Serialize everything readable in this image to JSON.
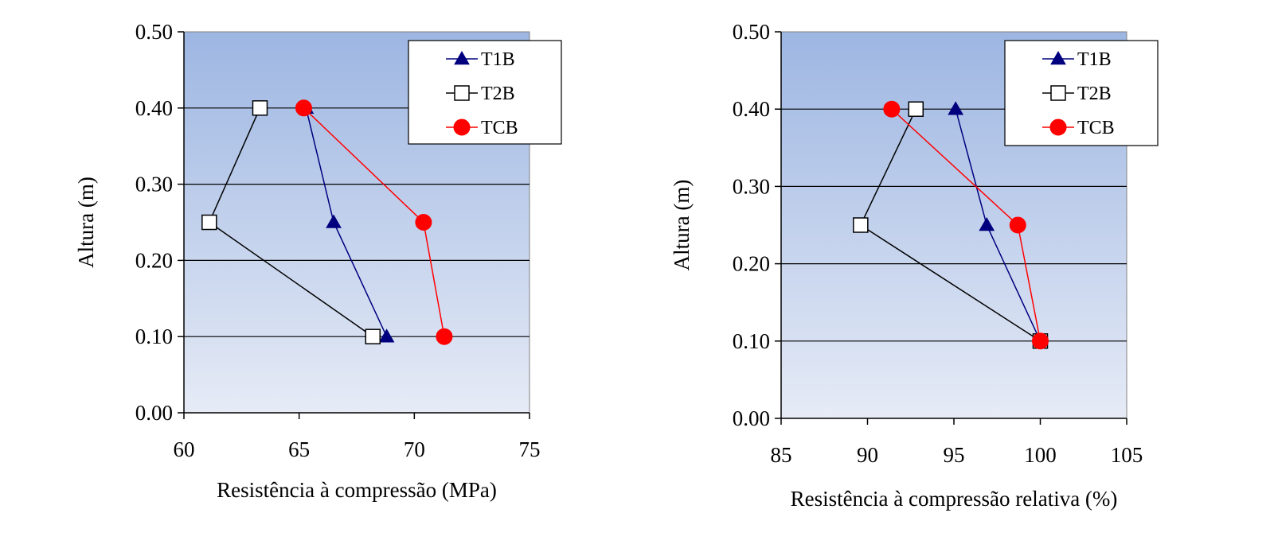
{
  "charts": [
    {
      "id": "left",
      "type": "line",
      "xlabel": "Resistência à compressão (MPa)",
      "ylabel": "Altura (m)",
      "xlim": [
        60,
        75
      ],
      "ylim": [
        0,
        0.5
      ],
      "xticks": [
        "60",
        "65",
        "70",
        "75"
      ],
      "yticks": [
        "0.00",
        "0.10",
        "0.20",
        "0.30",
        "0.40",
        "0.50"
      ],
      "grid": "horizontal",
      "legend": "top-right",
      "series": [
        {
          "name": "T1B",
          "marker": "triangle",
          "color": "#00007F",
          "fill": "#00007F",
          "points": [
            {
              "x": 65.3,
              "y": 0.4
            },
            {
              "x": 66.5,
              "y": 0.25
            },
            {
              "x": 68.8,
              "y": 0.1
            }
          ]
        },
        {
          "name": "T2B",
          "marker": "square",
          "color": "#000000",
          "fill": "#FFFFFF",
          "points": [
            {
              "x": 63.3,
              "y": 0.4
            },
            {
              "x": 61.1,
              "y": 0.25
            },
            {
              "x": 68.2,
              "y": 0.1
            }
          ]
        },
        {
          "name": "TCB",
          "marker": "circle",
          "color": "#FF0000",
          "fill": "#FF0000",
          "points": [
            {
              "x": 65.2,
              "y": 0.4
            },
            {
              "x": 70.4,
              "y": 0.25
            },
            {
              "x": 71.3,
              "y": 0.1
            }
          ]
        }
      ]
    },
    {
      "id": "right",
      "type": "line",
      "xlabel": "Resistência à compressão relativa (%)",
      "ylabel": "Altura (m)",
      "xlim": [
        85,
        105
      ],
      "ylim": [
        0,
        0.5
      ],
      "xticks": [
        "85",
        "90",
        "95",
        "100",
        "105"
      ],
      "yticks": [
        "0.00",
        "0.10",
        "0.20",
        "0.30",
        "0.40",
        "0.50"
      ],
      "grid": "horizontal",
      "legend": "top-right",
      "series": [
        {
          "name": "T1B",
          "marker": "triangle",
          "color": "#00007F",
          "fill": "#00007F",
          "points": [
            {
              "x": 95.1,
              "y": 0.4
            },
            {
              "x": 96.9,
              "y": 0.25
            },
            {
              "x": 100.0,
              "y": 0.1
            }
          ]
        },
        {
          "name": "T2B",
          "marker": "square",
          "color": "#000000",
          "fill": "#FFFFFF",
          "points": [
            {
              "x": 92.8,
              "y": 0.4
            },
            {
              "x": 89.6,
              "y": 0.25
            },
            {
              "x": 100.0,
              "y": 0.1
            }
          ]
        },
        {
          "name": "TCB",
          "marker": "circle",
          "color": "#FF0000",
          "fill": "#FF0000",
          "points": [
            {
              "x": 91.4,
              "y": 0.4
            },
            {
              "x": 98.7,
              "y": 0.25
            },
            {
              "x": 100.0,
              "y": 0.1
            }
          ]
        }
      ]
    }
  ],
  "chart_data": [
    {
      "type": "line",
      "xlabel": "Resistência à compressão (MPa)",
      "ylabel": "Altura (m)",
      "xlim": [
        60,
        75
      ],
      "ylim": [
        0,
        0.5
      ],
      "series": [
        {
          "name": "T1B",
          "x": [
            65.3,
            66.5,
            68.8
          ],
          "y": [
            0.4,
            0.25,
            0.1
          ]
        },
        {
          "name": "T2B",
          "x": [
            63.3,
            61.1,
            68.2
          ],
          "y": [
            0.4,
            0.25,
            0.1
          ]
        },
        {
          "name": "TCB",
          "x": [
            65.2,
            70.4,
            71.3
          ],
          "y": [
            0.4,
            0.25,
            0.1
          ]
        }
      ],
      "grid": "horizontal",
      "legend": "top-right"
    },
    {
      "type": "line",
      "xlabel": "Resistência à compressão relativa (%)",
      "ylabel": "Altura (m)",
      "xlim": [
        85,
        105
      ],
      "ylim": [
        0,
        0.5
      ],
      "series": [
        {
          "name": "T1B",
          "x": [
            95.1,
            96.9,
            100.0
          ],
          "y": [
            0.4,
            0.25,
            0.1
          ]
        },
        {
          "name": "T2B",
          "x": [
            92.8,
            89.6,
            100.0
          ],
          "y": [
            0.4,
            0.25,
            0.1
          ]
        },
        {
          "name": "TCB",
          "x": [
            91.4,
            98.7,
            100.0
          ],
          "y": [
            0.4,
            0.25,
            0.1
          ]
        }
      ],
      "grid": "horizontal",
      "legend": "top-right"
    }
  ]
}
